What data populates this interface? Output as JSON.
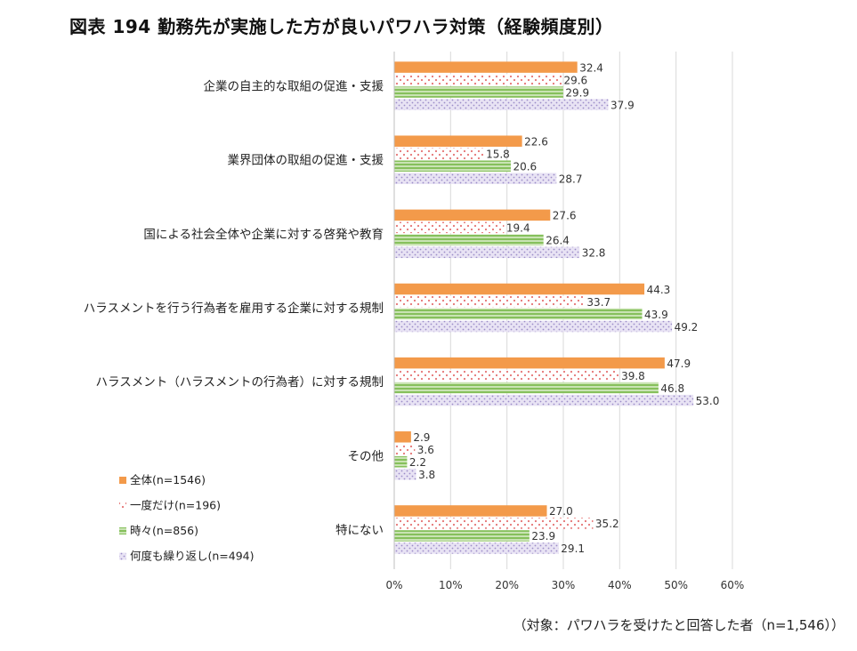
{
  "title": "図表 194 勤務先が実施した方が良いパワハラ対策（経験頻度別）",
  "footnote": "（対象：パワハラを受けたと回答した者（n=1,546））",
  "colors": {
    "series_0": "#F39A4A",
    "series_1": "#E98A8A",
    "series_2": "#8FC46A",
    "series_3": "#A89BD0",
    "grid": "#D9D9D9",
    "axis": "#BFBFBF"
  },
  "chart_data": {
    "type": "bar",
    "orientation": "horizontal",
    "categories": [
      "企業の自主的な取組の促進・支援",
      "業界団体の取組の促進・支援",
      "国による社会全体や企業に対する啓発や教育",
      "ハラスメントを行う行為者を雇用する企業に対する規制",
      "ハラスメント（ハラスメントの行為者）に対する規制",
      "その他",
      "特にない"
    ],
    "series": [
      {
        "name": "全体(n=1546)",
        "values": [
          32.4,
          22.6,
          27.6,
          44.3,
          47.9,
          2.9,
          27.0
        ]
      },
      {
        "name": "一度だけ(n=196)",
        "values": [
          29.6,
          15.8,
          19.4,
          33.7,
          39.8,
          3.6,
          35.2
        ]
      },
      {
        "name": "時々(n=856)",
        "values": [
          29.9,
          20.6,
          26.4,
          43.9,
          46.8,
          2.2,
          23.9
        ]
      },
      {
        "name": "何度も繰り返し(n=494)",
        "values": [
          37.9,
          28.7,
          32.8,
          49.2,
          53.0,
          3.8,
          29.1
        ]
      }
    ],
    "xlim": [
      0,
      60
    ],
    "xticks": [
      0,
      10,
      20,
      30,
      40,
      50,
      60
    ],
    "xtick_labels": [
      "0%",
      "10%",
      "20%",
      "30%",
      "40%",
      "50%",
      "60%"
    ],
    "value_labels": [
      [
        "32.4",
        "22.6",
        "27.6",
        "44.3",
        "47.9",
        "2.9",
        "27.0"
      ],
      [
        "29.6",
        "15.8",
        "19.4",
        "33.7",
        "39.8",
        "3.6",
        "35.2"
      ],
      [
        "29.9",
        "20.6",
        "26.4",
        "43.9",
        "46.8",
        "2.2",
        "23.9"
      ],
      [
        "37.9",
        "28.7",
        "32.8",
        "49.2",
        "53.0",
        "3.8",
        "29.1"
      ]
    ],
    "grid": true,
    "legend_position": "bottom-left"
  }
}
